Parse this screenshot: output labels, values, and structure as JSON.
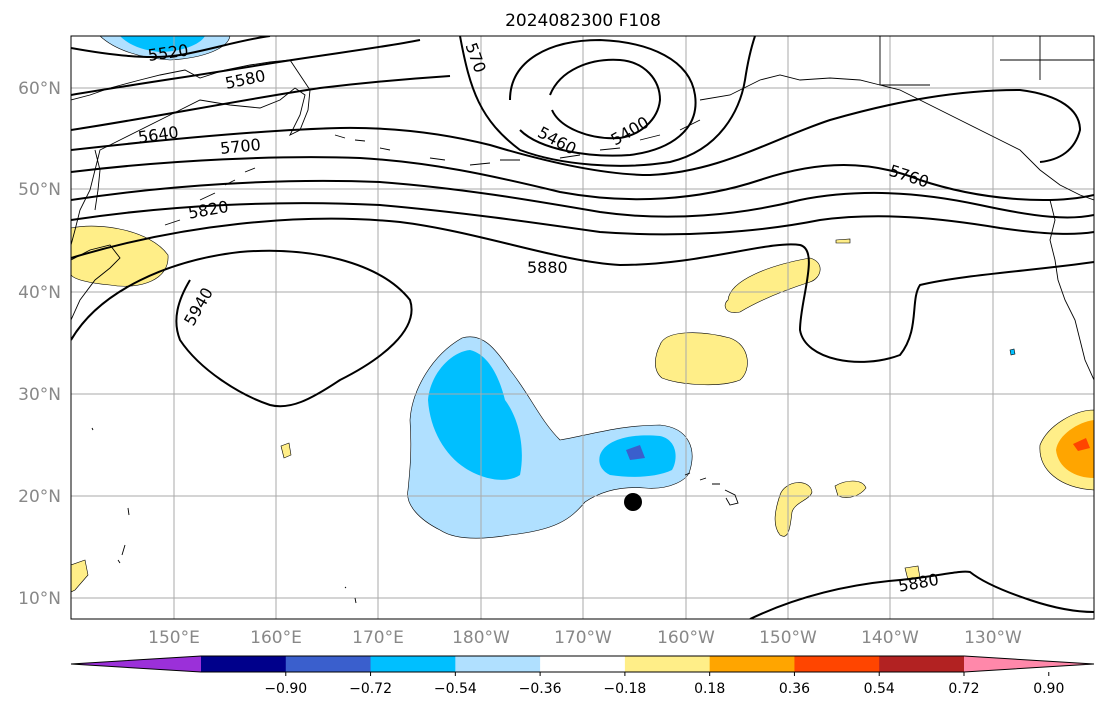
{
  "title": "2024082300 F108",
  "lat_labels": [
    "60°N",
    "50°N",
    "40°N",
    "30°N",
    "20°N",
    "10°N"
  ],
  "lon_labels": [
    "150°E",
    "160°E",
    "170°E",
    "180°W",
    "170°W",
    "160°W",
    "150°W",
    "140°W",
    "130°W"
  ],
  "contour_labels": [
    "5520",
    "5580",
    "5640",
    "5700",
    "5820",
    "5880",
    "5940",
    "5460",
    "5400",
    "5760",
    "5880",
    "570"
  ],
  "colorbar": {
    "ticks": [
      "−0.90",
      "−0.72",
      "−0.54",
      "−0.36",
      "−0.18",
      "0.18",
      "0.36",
      "0.54",
      "0.72",
      "0.90"
    ],
    "colors": [
      "#9b30d9",
      "#00008b",
      "#3a5fcd",
      "#00bfff",
      "#b0e0ff",
      "#ffffff",
      "#ffee88",
      "#ffa500",
      "#ff4500",
      "#b22222",
      "#ff88aa"
    ]
  },
  "colors": {
    "pos_light": "#ffee88",
    "pos_orange": "#ffa500",
    "pos_red": "#ff4500",
    "neg_light": "#b0e0ff",
    "neg_mid": "#00bfff",
    "neg_dark": "#3a5fcd"
  }
}
